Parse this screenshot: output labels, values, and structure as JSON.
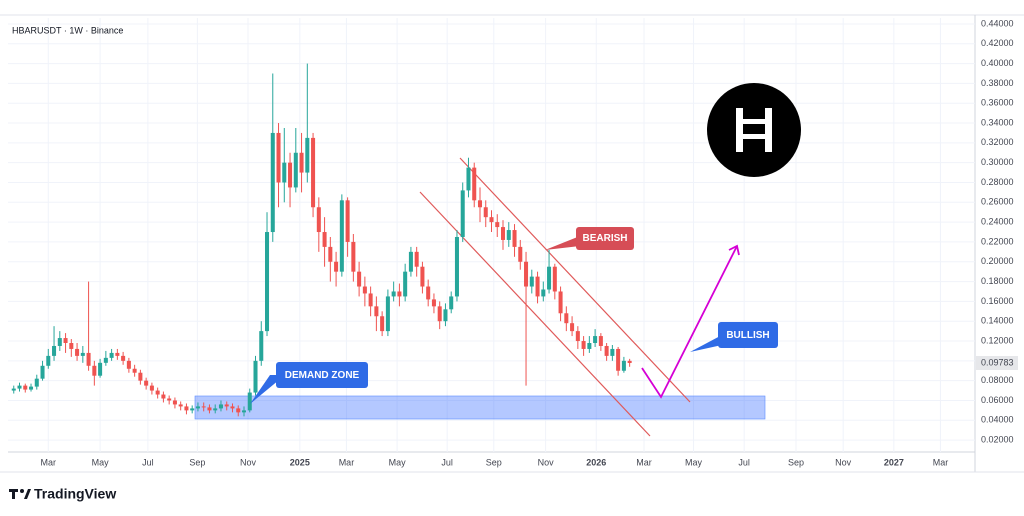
{
  "chart_data": {
    "type": "candlestick",
    "title": "HBARUSDT · 1W · Binance",
    "up_color": "#26a69a",
    "down_color": "#ef5350",
    "open": [
      0.07,
      0.072,
      0.075,
      0.071,
      0.074,
      0.082,
      0.095,
      0.105,
      0.115,
      0.123,
      0.118,
      0.112,
      0.105,
      0.108,
      0.095,
      0.085,
      0.098,
      0.103,
      0.108,
      0.105,
      0.1,
      0.092,
      0.088,
      0.08,
      0.075,
      0.07,
      0.066,
      0.062,
      0.06,
      0.056,
      0.054,
      0.05,
      0.052,
      0.054,
      0.053,
      0.05,
      0.052,
      0.056,
      0.054,
      0.052,
      0.048,
      0.05,
      0.068,
      0.1,
      0.13,
      0.23,
      0.33,
      0.28,
      0.3,
      0.275,
      0.31,
      0.29,
      0.325,
      0.255,
      0.23,
      0.215,
      0.2,
      0.19,
      0.262,
      0.22,
      0.19,
      0.175,
      0.168,
      0.155,
      0.145,
      0.13,
      0.165,
      0.17,
      0.165,
      0.19,
      0.21,
      0.195,
      0.175,
      0.162,
      0.155,
      0.14,
      0.152,
      0.165,
      0.225,
      0.272,
      0.295,
      0.262,
      0.255,
      0.245,
      0.24,
      0.235,
      0.222,
      0.232,
      0.215,
      0.2,
      0.175,
      0.185,
      0.165,
      0.172,
      0.195,
      0.17,
      0.148,
      0.138,
      0.13,
      0.12,
      0.112,
      0.118,
      0.125,
      0.115,
      0.105,
      0.112,
      0.09,
      0.1
    ],
    "high": [
      0.075,
      0.078,
      0.077,
      0.077,
      0.086,
      0.1,
      0.112,
      0.135,
      0.13,
      0.128,
      0.122,
      0.118,
      0.115,
      0.18,
      0.1,
      0.102,
      0.11,
      0.112,
      0.112,
      0.109,
      0.103,
      0.096,
      0.091,
      0.083,
      0.078,
      0.073,
      0.069,
      0.065,
      0.063,
      0.059,
      0.057,
      0.055,
      0.058,
      0.058,
      0.056,
      0.056,
      0.06,
      0.059,
      0.057,
      0.055,
      0.054,
      0.072,
      0.105,
      0.14,
      0.25,
      0.39,
      0.34,
      0.335,
      0.31,
      0.335,
      0.33,
      0.4,
      0.33,
      0.265,
      0.245,
      0.225,
      0.21,
      0.268,
      0.265,
      0.228,
      0.2,
      0.185,
      0.175,
      0.165,
      0.15,
      0.172,
      0.18,
      0.178,
      0.198,
      0.215,
      0.215,
      0.2,
      0.182,
      0.168,
      0.16,
      0.158,
      0.17,
      0.232,
      0.28,
      0.305,
      0.3,
      0.275,
      0.262,
      0.252,
      0.248,
      0.242,
      0.24,
      0.238,
      0.222,
      0.21,
      0.192,
      0.19,
      0.18,
      0.212,
      0.198,
      0.175,
      0.155,
      0.145,
      0.135,
      0.125,
      0.125,
      0.132,
      0.128,
      0.118,
      0.116,
      0.114,
      0.104,
      0.102
    ],
    "low": [
      0.067,
      0.069,
      0.068,
      0.069,
      0.071,
      0.08,
      0.092,
      0.1,
      0.11,
      0.108,
      0.104,
      0.1,
      0.098,
      0.09,
      0.075,
      0.083,
      0.095,
      0.1,
      0.101,
      0.096,
      0.088,
      0.084,
      0.076,
      0.071,
      0.066,
      0.062,
      0.058,
      0.056,
      0.052,
      0.05,
      0.046,
      0.047,
      0.049,
      0.049,
      0.047,
      0.047,
      0.049,
      0.05,
      0.048,
      0.044,
      0.044,
      0.048,
      0.065,
      0.095,
      0.125,
      0.22,
      0.255,
      0.26,
      0.255,
      0.27,
      0.27,
      0.28,
      0.245,
      0.21,
      0.195,
      0.18,
      0.175,
      0.185,
      0.205,
      0.18,
      0.165,
      0.155,
      0.145,
      0.13,
      0.125,
      0.125,
      0.16,
      0.155,
      0.16,
      0.185,
      0.185,
      0.168,
      0.155,
      0.148,
      0.132,
      0.135,
      0.148,
      0.16,
      0.22,
      0.265,
      0.255,
      0.24,
      0.235,
      0.23,
      0.225,
      0.212,
      0.215,
      0.205,
      0.192,
      0.075,
      0.168,
      0.158,
      0.16,
      0.168,
      0.162,
      0.14,
      0.13,
      0.125,
      0.112,
      0.105,
      0.108,
      0.114,
      0.11,
      0.1,
      0.1,
      0.085,
      0.088,
      0.094
    ],
    "close": [
      0.072,
      0.075,
      0.071,
      0.074,
      0.082,
      0.095,
      0.105,
      0.115,
      0.123,
      0.118,
      0.112,
      0.105,
      0.108,
      0.095,
      0.085,
      0.098,
      0.103,
      0.108,
      0.105,
      0.1,
      0.092,
      0.088,
      0.08,
      0.075,
      0.07,
      0.066,
      0.062,
      0.06,
      0.056,
      0.054,
      0.05,
      0.052,
      0.054,
      0.053,
      0.05,
      0.052,
      0.056,
      0.054,
      0.052,
      0.048,
      0.05,
      0.068,
      0.1,
      0.13,
      0.23,
      0.33,
      0.28,
      0.3,
      0.275,
      0.31,
      0.29,
      0.325,
      0.255,
      0.23,
      0.215,
      0.2,
      0.19,
      0.262,
      0.22,
      0.19,
      0.175,
      0.168,
      0.155,
      0.145,
      0.13,
      0.165,
      0.17,
      0.165,
      0.19,
      0.21,
      0.195,
      0.175,
      0.162,
      0.155,
      0.14,
      0.152,
      0.165,
      0.225,
      0.272,
      0.295,
      0.262,
      0.255,
      0.245,
      0.24,
      0.235,
      0.222,
      0.232,
      0.215,
      0.2,
      0.175,
      0.185,
      0.165,
      0.172,
      0.195,
      0.17,
      0.148,
      0.138,
      0.13,
      0.12,
      0.112,
      0.118,
      0.125,
      0.115,
      0.105,
      0.112,
      0.09,
      0.1,
      0.09783
    ],
    "xlim": [
      -1,
      167
    ],
    "xticks": [
      {
        "value": 6.0,
        "label": "Mar"
      },
      {
        "value": 15.0,
        "label": "May"
      },
      {
        "value": 23.3,
        "label": "Jul"
      },
      {
        "value": 31.9,
        "label": "Sep"
      },
      {
        "value": 40.7,
        "label": "Nov"
      },
      {
        "value": 49.7,
        "label": "2025"
      },
      {
        "value": 57.8,
        "label": "Mar"
      },
      {
        "value": 66.6,
        "label": "May"
      },
      {
        "value": 75.3,
        "label": "Jul"
      },
      {
        "value": 83.4,
        "label": "Sep"
      },
      {
        "value": 92.4,
        "label": "Nov"
      },
      {
        "value": 101.2,
        "label": "2026"
      },
      {
        "value": 109.5,
        "label": "Mar"
      },
      {
        "value": 118.1,
        "label": "May"
      },
      {
        "value": 126.9,
        "label": "Jul"
      },
      {
        "value": 135.9,
        "label": "Sep"
      },
      {
        "value": 144.1,
        "label": "Nov"
      },
      {
        "value": 152.9,
        "label": "2027"
      },
      {
        "value": 161.0,
        "label": "Mar"
      }
    ],
    "ylim": [
      0.008,
      0.446
    ],
    "yticks": [
      {
        "value": 0.02,
        "label": "0.02000"
      },
      {
        "value": 0.04,
        "label": "0.04000"
      },
      {
        "value": 0.06,
        "label": "0.06000"
      },
      {
        "value": 0.08,
        "label": "0.08000"
      },
      {
        "value": 0.1,
        "label": "0.10000"
      },
      {
        "value": 0.12,
        "label": "0.12000"
      },
      {
        "value": 0.14,
        "label": "0.14000"
      },
      {
        "value": 0.16,
        "label": "0.16000"
      },
      {
        "value": 0.18,
        "label": "0.18000"
      },
      {
        "value": 0.2,
        "label": "0.20000"
      },
      {
        "value": 0.22,
        "label": "0.22000"
      },
      {
        "value": 0.24,
        "label": "0.24000"
      },
      {
        "value": 0.26,
        "label": "0.26000"
      },
      {
        "value": 0.28,
        "label": "0.28000"
      },
      {
        "value": 0.3,
        "label": "0.30000"
      },
      {
        "value": 0.32,
        "label": "0.32000"
      },
      {
        "value": 0.34,
        "label": "0.34000"
      },
      {
        "value": 0.36,
        "label": "0.36000"
      },
      {
        "value": 0.38,
        "label": "0.38000"
      },
      {
        "value": 0.4,
        "label": "0.40000"
      },
      {
        "value": 0.42,
        "label": "0.42000"
      },
      {
        "value": 0.44,
        "label": "0.44000"
      }
    ],
    "annotations": {
      "demand_zone": "DEMAND ZONE",
      "bearish": "BEARISH",
      "bullish": "BULLISH"
    }
  },
  "brand": "TradingView"
}
